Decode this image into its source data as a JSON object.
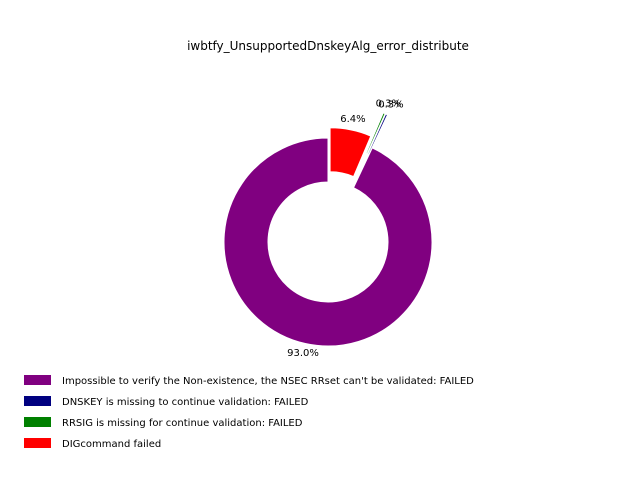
{
  "chart_data": {
    "type": "pie",
    "title": "iwbtfy_UnsupportedDnskeyAlg_error_distribute",
    "donut": true,
    "slices": [
      {
        "label": "Impossible to verify the Non-existence, the NSEC RRset can't be validated: FAILED",
        "value": 93.0,
        "pct_label": "93.0%",
        "color": "#800080"
      },
      {
        "label": "DNSKEY is missing to continue validation: FAILED",
        "value": 0.3,
        "pct_label": "0.3%",
        "color": "#000080"
      },
      {
        "label": "RRSIG is missing for continue validation: FAILED",
        "value": 0.3,
        "pct_label": "0.3%",
        "color": "#008000"
      },
      {
        "label": "DIGcommand failed",
        "value": 6.4,
        "pct_label": "6.4%",
        "color": "#ff0000"
      }
    ],
    "legend_placement": "bottom-left"
  }
}
